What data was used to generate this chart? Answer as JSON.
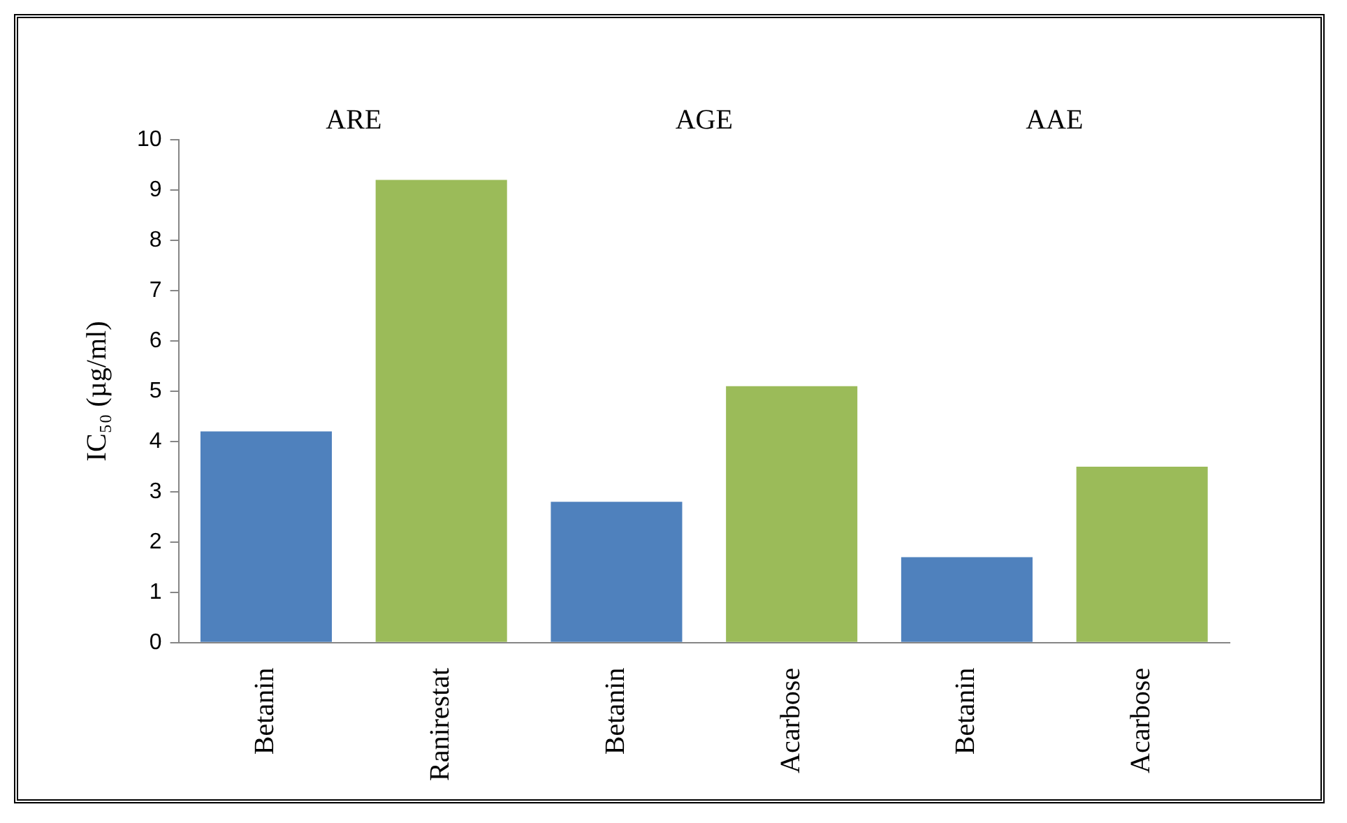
{
  "chart_data": {
    "type": "bar",
    "categories": [
      "Betanin",
      "Ranirestat",
      "Betanin",
      "Acarbose",
      "Betanin",
      "Acarbose"
    ],
    "values": [
      4.2,
      9.2,
      2.8,
      5.1,
      1.7,
      3.5
    ],
    "colors": [
      "#4f81bd",
      "#9bbb59",
      "#4f81bd",
      "#9bbb59",
      "#4f81bd",
      "#9bbb59"
    ],
    "ylabel": "IC₅₀ (µg/ml)",
    "ylim": [
      0,
      10
    ],
    "yticks": [
      0,
      1,
      2,
      3,
      4,
      5,
      6,
      7,
      8,
      9,
      10
    ],
    "annotations": [
      "ARE",
      "AGE",
      "AAE"
    ],
    "grid": false,
    "legend": false
  }
}
